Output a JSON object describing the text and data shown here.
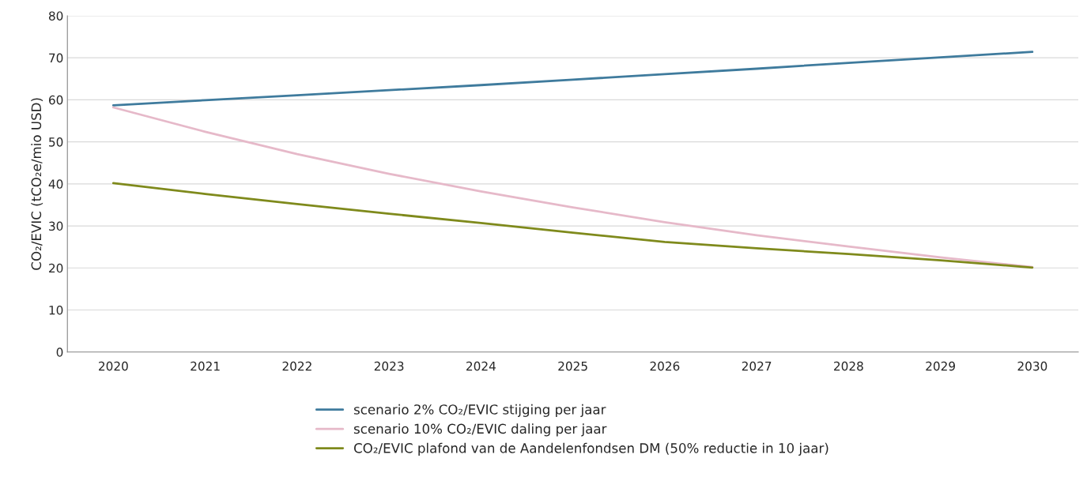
{
  "chart_data": {
    "type": "line",
    "ylabel": "CO₂/EVIC (tCO₂e/mio USD)",
    "categories": [
      "2020",
      "2021",
      "2022",
      "2023",
      "2024",
      "2025",
      "2026",
      "2027",
      "2028",
      "2029",
      "2030"
    ],
    "series": [
      {
        "name": "scenario 2% CO₂/EVIC stijging per jaar",
        "color": "#3f7b9d",
        "values": [
          58.7,
          59.9,
          61.1,
          62.3,
          63.5,
          64.8,
          66.1,
          67.4,
          68.8,
          70.1,
          71.4
        ]
      },
      {
        "name": "scenario 10% CO₂/EVIC daling per jaar",
        "color": "#e6b9c9",
        "values": [
          58.2,
          52.4,
          47.1,
          42.4,
          38.2,
          34.4,
          30.9,
          27.8,
          25.1,
          22.5,
          20.2
        ]
      },
      {
        "name": "CO₂/EVIC plafond van de Aandelenfondsen DM (50% reductie in 10 jaar)",
        "color": "#7f8a1c",
        "values": [
          40.2,
          37.6,
          35.2,
          32.9,
          30.7,
          28.4,
          26.2,
          24.7,
          23.3,
          21.8,
          20.1
        ]
      }
    ],
    "ylim": [
      0,
      80
    ],
    "yticks": [
      0,
      10,
      20,
      30,
      40,
      50,
      60,
      70,
      80
    ],
    "grid": "y",
    "legend": "bottom",
    "marker": "none",
    "line_style": "solid"
  }
}
